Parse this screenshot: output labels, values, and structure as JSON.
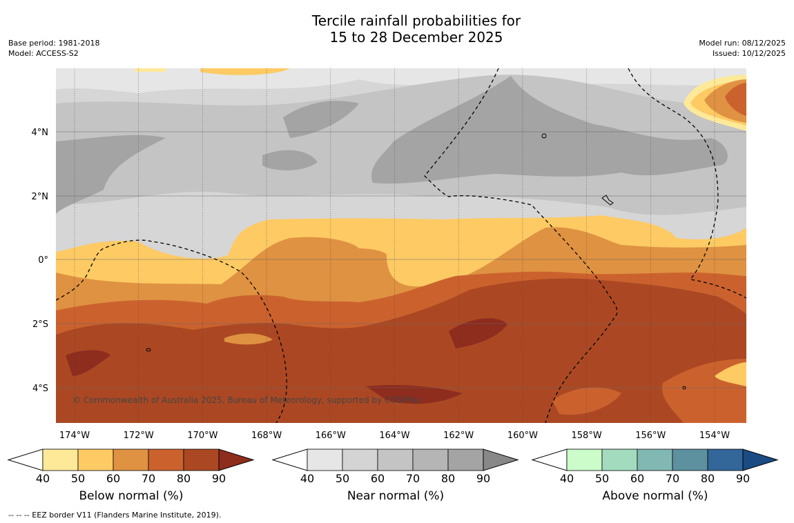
{
  "title": {
    "line1": "Tercile rainfall probabilities for",
    "line2": "15 to 28 December 2025"
  },
  "meta_left": {
    "base_period": "Base period: 1981-2018",
    "model": "Model: ACCESS-S2"
  },
  "meta_right": {
    "model_run": "Model run: 08/12/2025",
    "issued": "Issued: 10/12/2025"
  },
  "map": {
    "lat_labels": [
      "4°N",
      "2°N",
      "0°",
      "2°S",
      "4°S"
    ],
    "lon_labels": [
      "174°W",
      "172°W",
      "170°W",
      "168°W",
      "166°W",
      "164°W",
      "162°W",
      "160°W",
      "158°W",
      "156°W",
      "154°W"
    ],
    "copyright": "© Commonwealth of Australia 2025, Bureau of Meteorology, supported by COSPPac",
    "colors": {
      "near": [
        "#e6e6e6",
        "#d6d6d6",
        "#c4c4c4",
        "#b5b5b5",
        "#a4a4a4"
      ],
      "below": [
        "#fee999",
        "#fdca64",
        "#df9241",
        "#cb622e",
        "#ab4823",
        "#8e2c1e"
      ]
    }
  },
  "colorbars": [
    {
      "label": "Below normal (%)",
      "ticks": [
        "40",
        "50",
        "60",
        "70",
        "80",
        "90"
      ],
      "colors": [
        "#fee999",
        "#fdca64",
        "#df9241",
        "#cb622e",
        "#ab4823"
      ],
      "over_color": "#8e2c1e"
    },
    {
      "label": "Near normal (%)",
      "ticks": [
        "40",
        "50",
        "60",
        "70",
        "80",
        "90"
      ],
      "colors": [
        "#e6e6e6",
        "#d4d4d4",
        "#c4c4c4",
        "#b5b5b5",
        "#a4a4a4"
      ],
      "over_color": "#888888"
    },
    {
      "label": "Above normal (%)",
      "ticks": [
        "40",
        "50",
        "60",
        "70",
        "80",
        "90"
      ],
      "colors": [
        "#cbfcca",
        "#a3dbbe",
        "#82b8b3",
        "#5d91a0",
        "#336699"
      ],
      "over_color": "#1a4b82"
    }
  ],
  "footer": "--  --  -- EEZ border V11 (Flanders Marine Institute, 2019)."
}
